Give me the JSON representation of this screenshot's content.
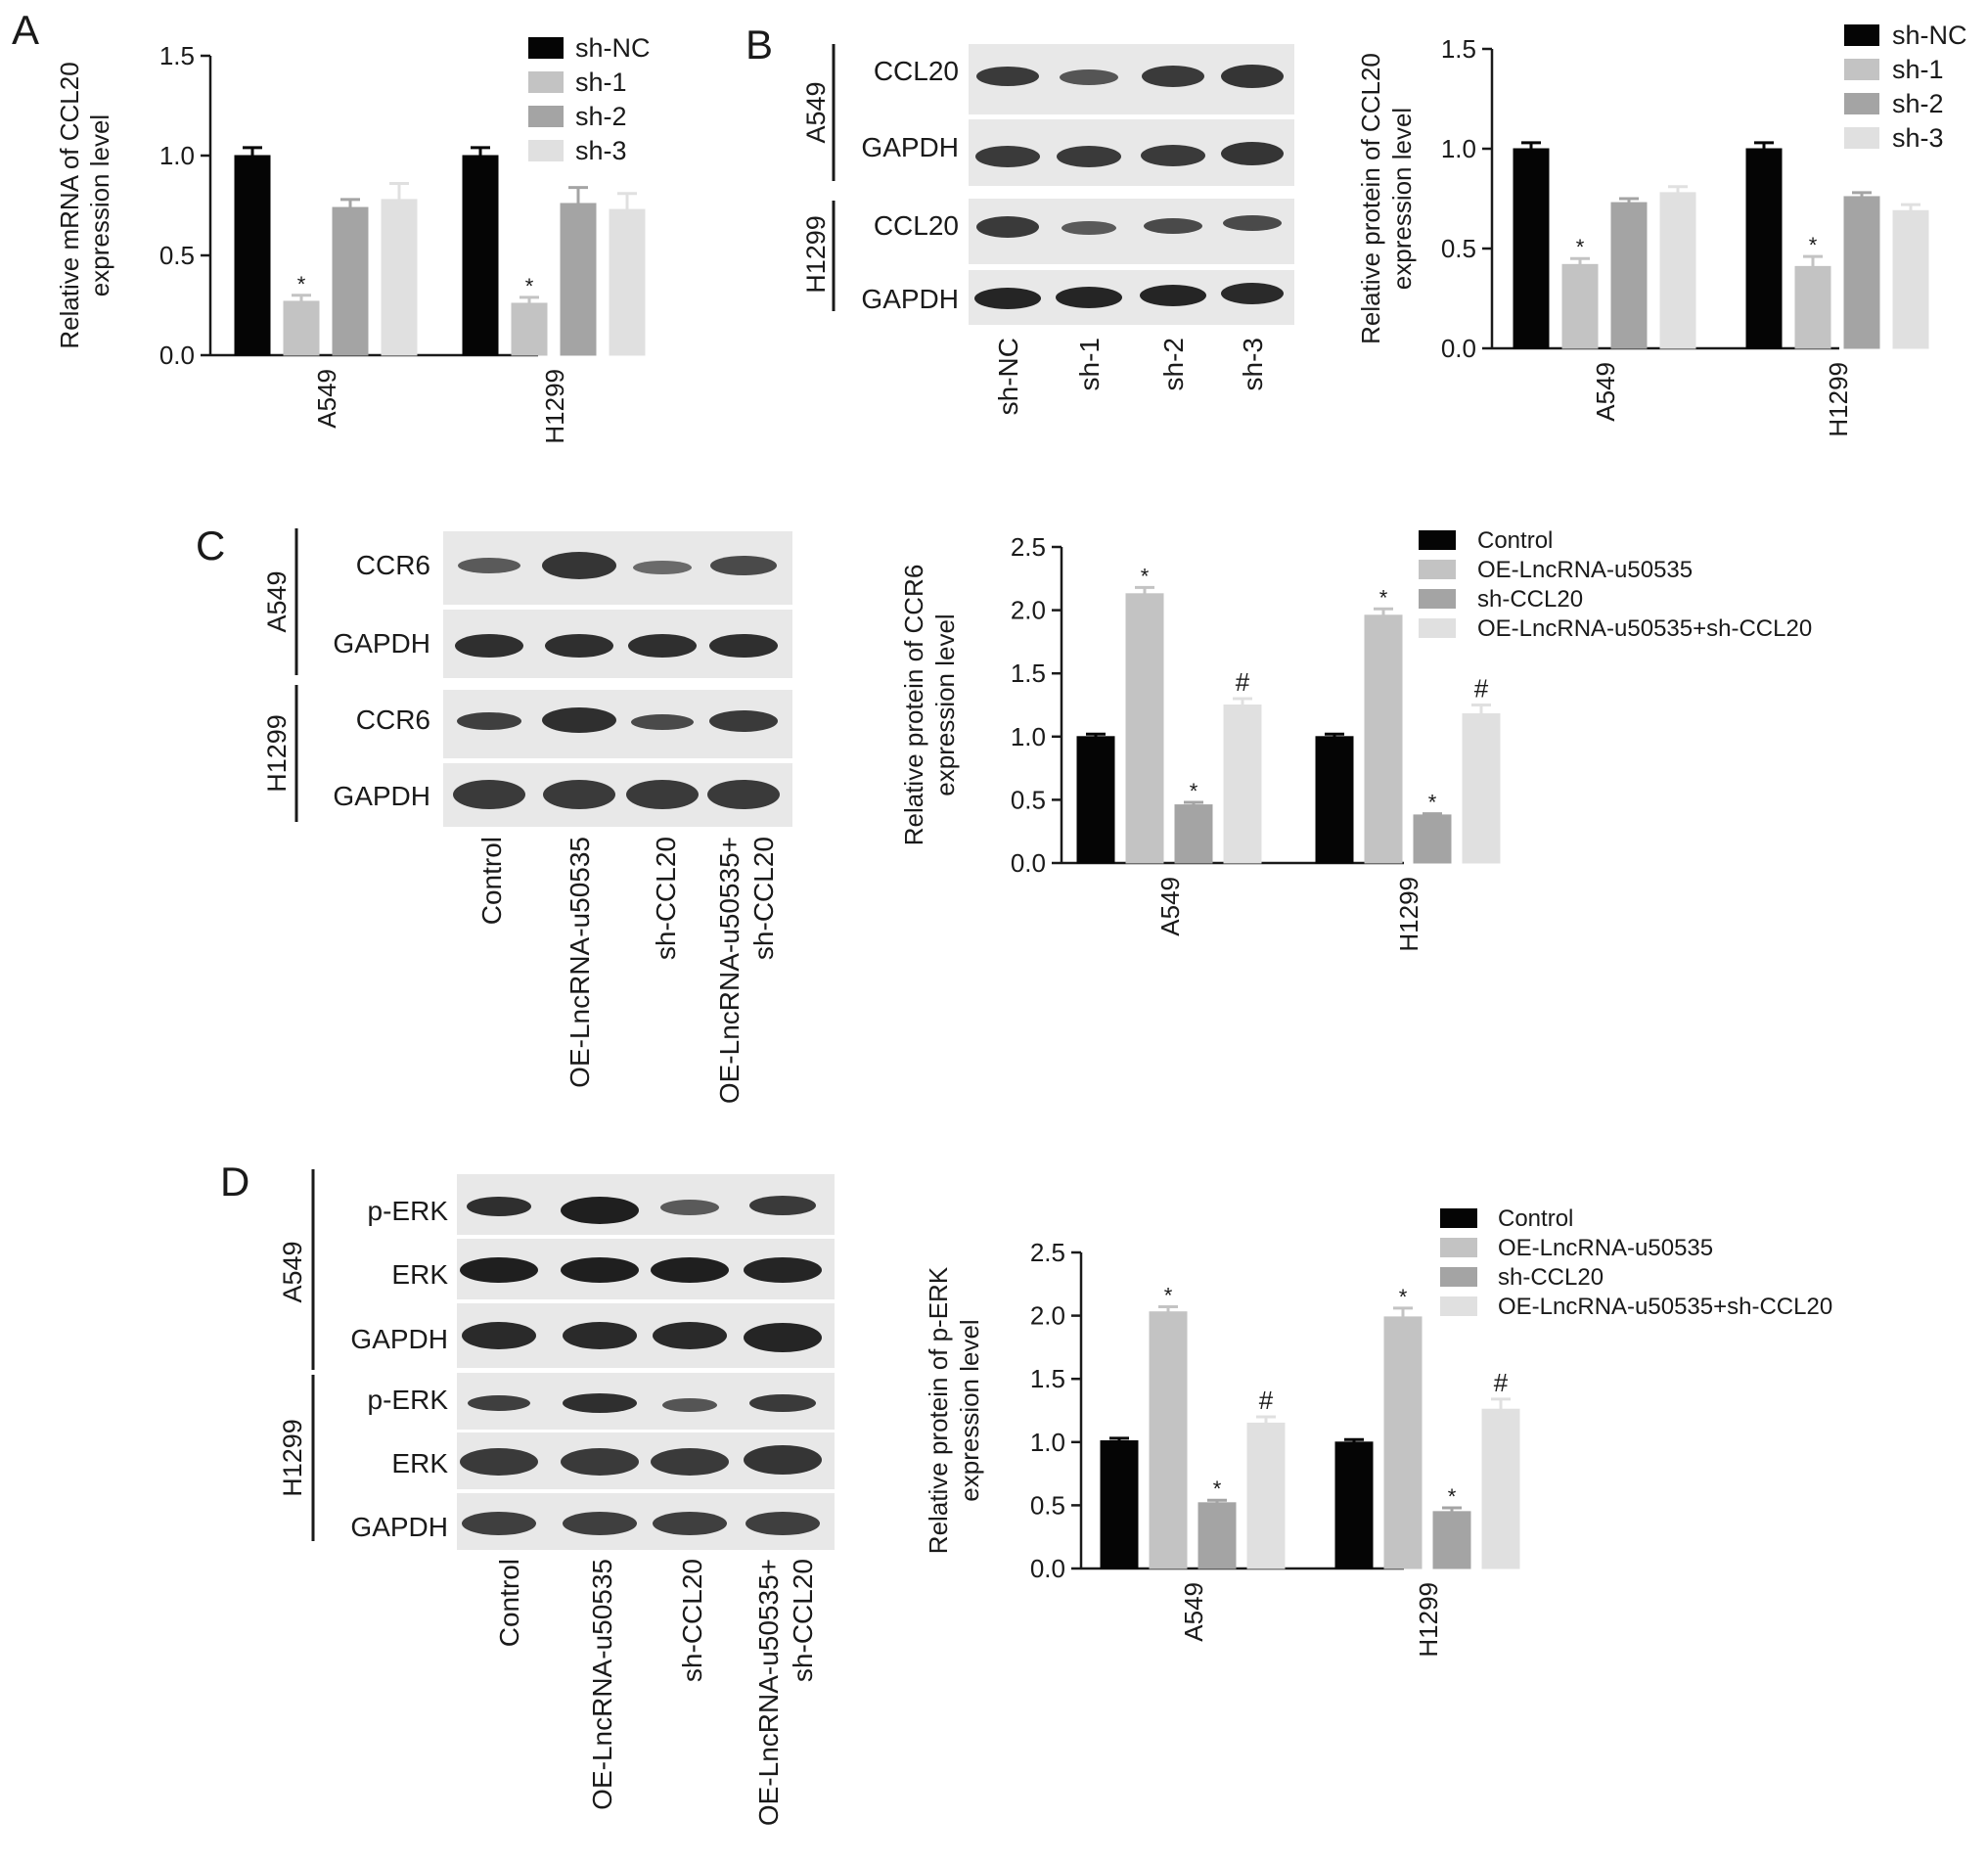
{
  "colors": {
    "ink": "#1a1a1a",
    "bar_series_1": "#050505",
    "bar_series_2": "#c3c3c3",
    "bar_series_3": "#a4a4a4",
    "bar_series_4": "#e0e0e0",
    "blot_background": "#e8e8e8",
    "band": "#2e2e2e"
  },
  "panels": {
    "A": {
      "letter": "A"
    },
    "B": {
      "letter": "B",
      "blot_rows": [
        "CCL20",
        "GAPDH",
        "CCL20",
        "GAPDH"
      ],
      "cell_lines": [
        "A549",
        "H1299"
      ],
      "lanes": [
        "sh-NC",
        "sh-1",
        "sh-2",
        "sh-3"
      ]
    },
    "C": {
      "letter": "C",
      "blot_rows": [
        "CCR6",
        "GAPDH",
        "CCR6",
        "GAPDH"
      ],
      "cell_lines": [
        "A549",
        "H1299"
      ],
      "lanes": [
        "Control",
        "OE-LncRNA-u50535",
        "sh-CCL20",
        "OE-LncRNA-u50535+",
        "sh-CCL20"
      ]
    },
    "D": {
      "letter": "D",
      "blot_rows": [
        "p-ERK",
        "ERK",
        "GAPDH",
        "p-ERK",
        "ERK",
        "GAPDH"
      ],
      "cell_lines": [
        "A549",
        "H1299"
      ],
      "lanes": [
        "Control",
        "OE-LncRNA-u50535",
        "sh-CCL20",
        "OE-LncRNA-u50535+",
        "sh-CCL20"
      ]
    }
  },
  "chart_data": [
    {
      "id": "A",
      "type": "bar",
      "ylabel": [
        "Relative mRNA of CCL20",
        "expression level"
      ],
      "ylim": [
        0,
        1.5
      ],
      "yticks": [
        "0.0",
        "0.5",
        "1.0",
        "1.5"
      ],
      "categories": [
        "A549",
        "H1299"
      ],
      "legend": "top-right",
      "series": [
        {
          "name": "sh-NC",
          "values": [
            1.0,
            1.0
          ],
          "errors": [
            0.04,
            0.04
          ],
          "marks": [
            "",
            ""
          ]
        },
        {
          "name": "sh-1",
          "values": [
            0.27,
            0.26
          ],
          "errors": [
            0.03,
            0.03
          ],
          "marks": [
            "*",
            "*"
          ]
        },
        {
          "name": "sh-2",
          "values": [
            0.74,
            0.76
          ],
          "errors": [
            0.04,
            0.08
          ],
          "marks": [
            "",
            ""
          ]
        },
        {
          "name": "sh-3",
          "values": [
            0.78,
            0.73
          ],
          "errors": [
            0.08,
            0.08
          ],
          "marks": [
            "",
            ""
          ]
        }
      ]
    },
    {
      "id": "B",
      "type": "bar",
      "ylabel": [
        "Relative protein of CCL20",
        "expression level"
      ],
      "ylim": [
        0,
        1.5
      ],
      "yticks": [
        "0.0",
        "0.5",
        "1.0",
        "1.5"
      ],
      "categories": [
        "A549",
        "H1299"
      ],
      "legend": "top-right",
      "series": [
        {
          "name": "sh-NC",
          "values": [
            1.0,
            1.0
          ],
          "errors": [
            0.03,
            0.03
          ],
          "marks": [
            "",
            ""
          ]
        },
        {
          "name": "sh-1",
          "values": [
            0.42,
            0.41
          ],
          "errors": [
            0.03,
            0.05
          ],
          "marks": [
            "*",
            "*"
          ]
        },
        {
          "name": "sh-2",
          "values": [
            0.73,
            0.76
          ],
          "errors": [
            0.02,
            0.02
          ],
          "marks": [
            "",
            ""
          ]
        },
        {
          "name": "sh-3",
          "values": [
            0.78,
            0.69
          ],
          "errors": [
            0.03,
            0.03
          ],
          "marks": [
            "",
            ""
          ]
        }
      ]
    },
    {
      "id": "C",
      "type": "bar",
      "ylabel": [
        "Relative protein of CCR6",
        "expression level"
      ],
      "ylim": [
        0,
        2.5
      ],
      "yticks": [
        "0.0",
        "0.5",
        "1.0",
        "1.5",
        "2.0",
        "2.5"
      ],
      "categories": [
        "A549",
        "H1299"
      ],
      "legend": "top-right",
      "series": [
        {
          "name": "Control",
          "values": [
            1.0,
            1.0
          ],
          "errors": [
            0.02,
            0.02
          ],
          "marks": [
            "",
            ""
          ]
        },
        {
          "name": "OE-LncRNA-u50535",
          "values": [
            2.13,
            1.96
          ],
          "errors": [
            0.05,
            0.05
          ],
          "marks": [
            "*",
            "*"
          ]
        },
        {
          "name": "sh-CCL20",
          "values": [
            0.46,
            0.38
          ],
          "errors": [
            0.02,
            0.01
          ],
          "marks": [
            "*",
            "*"
          ]
        },
        {
          "name": "OE-LncRNA-u50535+sh-CCL20",
          "values": [
            1.25,
            1.18
          ],
          "errors": [
            0.05,
            0.07
          ],
          "marks": [
            "#",
            "#"
          ]
        }
      ]
    },
    {
      "id": "D",
      "type": "bar",
      "ylabel": [
        "Relative protein of p-ERK",
        "expression level"
      ],
      "ylim": [
        0,
        2.5
      ],
      "yticks": [
        "0.0",
        "0.5",
        "1.0",
        "1.5",
        "2.0",
        "2.5"
      ],
      "categories": [
        "A549",
        "H1299"
      ],
      "legend": "top-right",
      "series": [
        {
          "name": "Control",
          "values": [
            1.01,
            1.0
          ],
          "errors": [
            0.02,
            0.02
          ],
          "marks": [
            "",
            ""
          ]
        },
        {
          "name": "OE-LncRNA-u50535",
          "values": [
            2.03,
            1.99
          ],
          "errors": [
            0.04,
            0.07
          ],
          "marks": [
            "*",
            "*"
          ]
        },
        {
          "name": "sh-CCL20",
          "values": [
            0.52,
            0.45
          ],
          "errors": [
            0.02,
            0.03
          ],
          "marks": [
            "*",
            "*"
          ]
        },
        {
          "name": "OE-LncRNA-u50535+sh-CCL20",
          "values": [
            1.15,
            1.26
          ],
          "errors": [
            0.05,
            0.08
          ],
          "marks": [
            "#",
            "#"
          ]
        }
      ]
    }
  ]
}
